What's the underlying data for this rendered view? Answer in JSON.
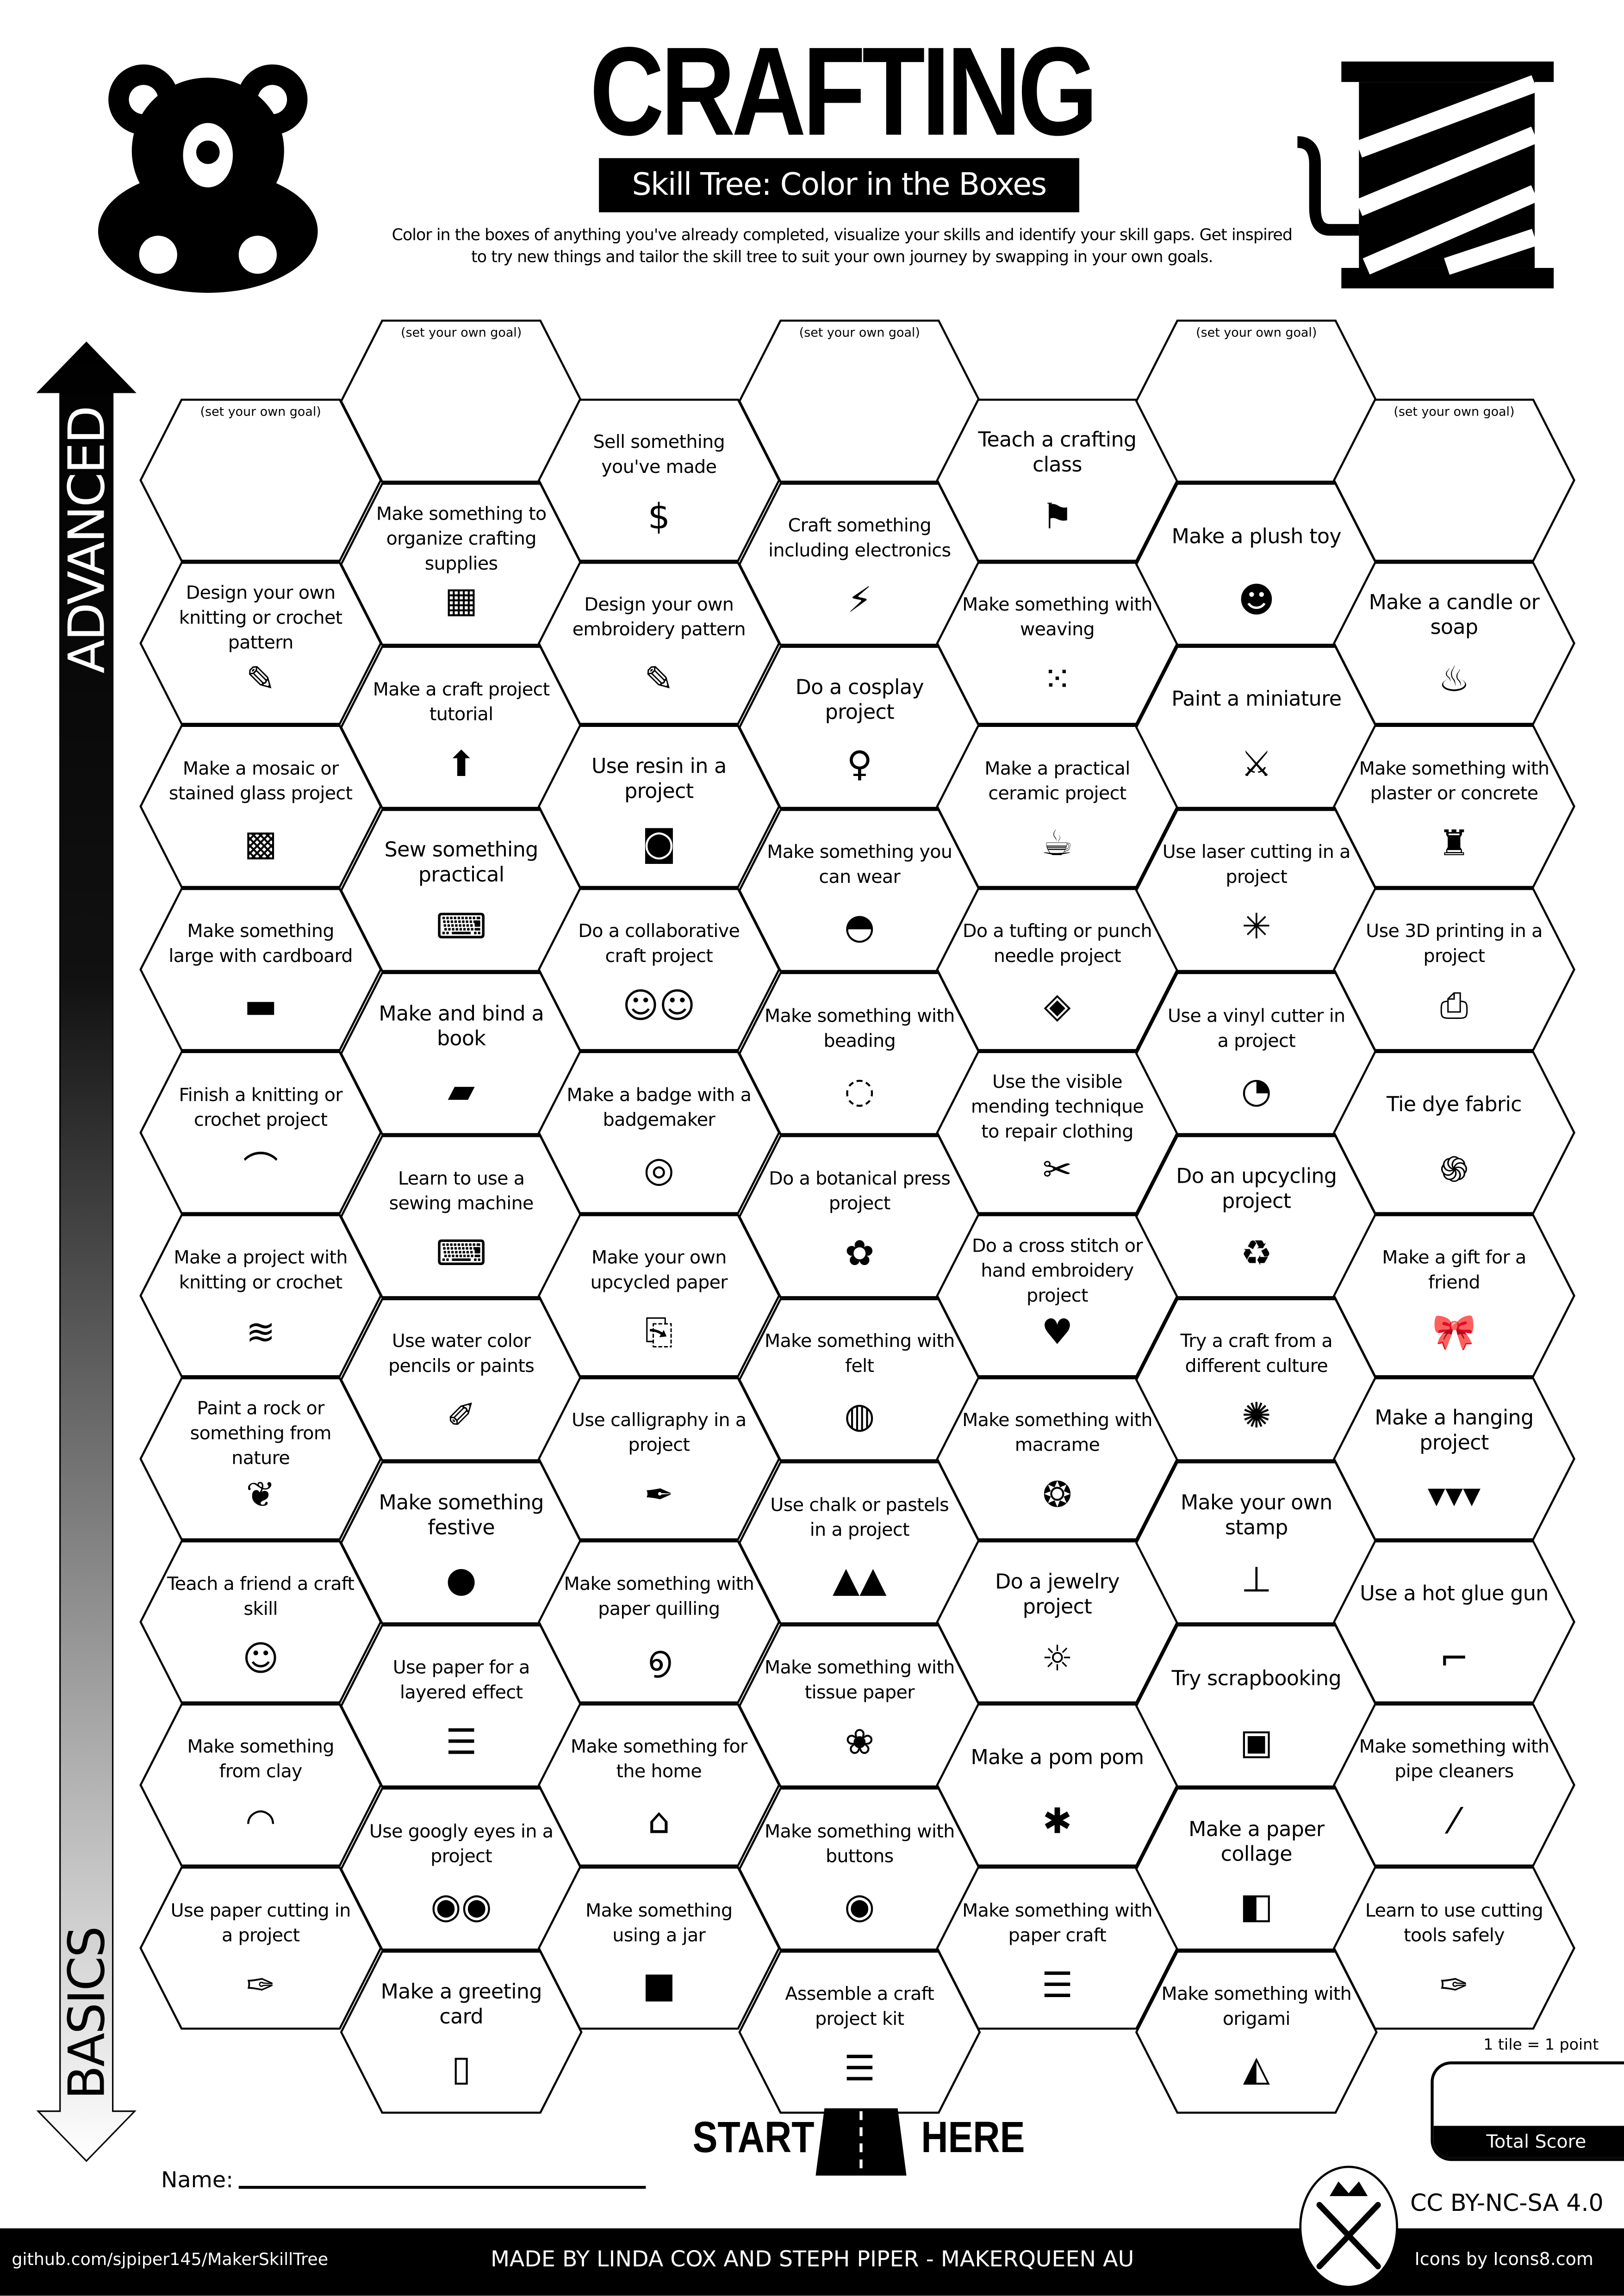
{
  "header": {
    "title": "CRAFTING",
    "subtitle": "Skill Tree: Color in the Boxes",
    "description_line1": "Color in the boxes of anything you've already completed, visualize your skills and identify your skill gaps.  Get inspired",
    "description_line2": "to try new things and tailor the skill tree to suit your own journey by swapping in your own goals.",
    "left_icon": "teddy-bear-icon",
    "right_icon": "thread-spool-icon"
  },
  "axis": {
    "top_label": "ADVANCED",
    "bottom_label": "BASICS"
  },
  "columns": [
    [
      {
        "goal": "(set your own goal)"
      },
      {
        "label": "Design your own knitting or crochet pattern",
        "icon": "pattern-icon",
        "glyph": "✎"
      },
      {
        "label": "Make a mosaic or stained glass project",
        "icon": "mosaic-icon",
        "glyph": "▩"
      },
      {
        "label": "Make something large with cardboard",
        "icon": "cardboard-icon",
        "glyph": "▬"
      },
      {
        "label": "Finish a knitting or crochet project",
        "icon": "knitting-icon",
        "glyph": "⌒"
      },
      {
        "label": "Make a project with knitting or crochet",
        "icon": "knitting-needles-icon",
        "glyph": "≋"
      },
      {
        "label": "Paint a rock or something from nature",
        "icon": "leaf-icon",
        "glyph": "❦"
      },
      {
        "label": "Teach a friend a craft skill",
        "icon": "teaching-icon",
        "glyph": "☺"
      },
      {
        "label": "Make something from clay",
        "icon": "rainbow-icon",
        "glyph": "◠"
      },
      {
        "label": "Use paper cutting in a project",
        "icon": "craft-knife-icon",
        "glyph": "✑"
      }
    ],
    [
      {
        "goal": "(set your own goal)"
      },
      {
        "label": "Make something to organize crafting supplies",
        "icon": "organize-icon",
        "glyph": "▦"
      },
      {
        "label": "Make a craft project tutorial",
        "icon": "upload-icon",
        "glyph": "⬆"
      },
      {
        "label": "Sew something practical",
        "icon": "sewing-machine-icon",
        "glyph": "⌨"
      },
      {
        "label": "Make and bind a book",
        "icon": "book-icon",
        "glyph": "▰"
      },
      {
        "label": "Learn to use a sewing machine",
        "icon": "sewing-machine-icon",
        "glyph": "⌨"
      },
      {
        "label": "Use water color pencils or paints",
        "icon": "paint-brush-icon",
        "glyph": "✐"
      },
      {
        "label": "Make something festive",
        "icon": "ornament-icon",
        "glyph": "●"
      },
      {
        "label": "Use paper for a layered effect",
        "icon": "paper-stack-icon",
        "glyph": "☰"
      },
      {
        "label": "Use googly eyes in a project",
        "icon": "googly-eyes-icon",
        "glyph": "◉◉"
      },
      {
        "label": "Make a greeting card",
        "icon": "greeting-card-icon",
        "glyph": "▯"
      }
    ],
    [
      {
        "label": "Sell something you've made",
        "icon": "money-bag-icon",
        "glyph": "$"
      },
      {
        "label": "Design your own embroidery pattern",
        "icon": "pattern-icon",
        "glyph": "✎"
      },
      {
        "label": "Use resin in a project",
        "icon": "resin-bucket-icon",
        "glyph": "◙"
      },
      {
        "label": "Do a collaborative craft project",
        "icon": "collaboration-icon",
        "glyph": "☺☺"
      },
      {
        "label": "Make a badge with a badgemaker",
        "icon": "badge-icon",
        "glyph": "◎"
      },
      {
        "label": "Make your own upcycled paper",
        "icon": "scroll-icon",
        "glyph": "⎘"
      },
      {
        "label": "Use calligraphy in a project",
        "icon": "fountain-pen-icon",
        "glyph": "✒"
      },
      {
        "label": "Make something with paper quilling",
        "icon": "spiral-icon",
        "glyph": "൭"
      },
      {
        "label": "Make something for the home",
        "icon": "home-icon",
        "glyph": "⌂"
      },
      {
        "label": "Make something using a jar",
        "icon": "jar-icon",
        "glyph": "■"
      }
    ],
    [
      {
        "goal": "(set your own goal)"
      },
      {
        "label": "Craft something including electronics",
        "icon": "led-electronics-icon",
        "glyph": "⚡"
      },
      {
        "label": "Do a cosplay project",
        "icon": "mannequin-icon",
        "glyph": "♀"
      },
      {
        "label": "Make something you can wear",
        "icon": "hat-icon",
        "glyph": "◓"
      },
      {
        "label": "Make something with beading",
        "icon": "beads-icon",
        "glyph": "◌"
      },
      {
        "label": "Do a botanical press project",
        "icon": "flower-icon",
        "glyph": "✿"
      },
      {
        "label": "Make something with felt",
        "icon": "felt-icon",
        "glyph": "◍"
      },
      {
        "label": "Use chalk or pastels in a project",
        "icon": "pastels-icon",
        "glyph": "▲▲"
      },
      {
        "label": "Make something with tissue paper",
        "icon": "lotus-icon",
        "glyph": "❀"
      },
      {
        "label": "Make something with buttons",
        "icon": "button-icon",
        "glyph": "◉"
      },
      {
        "label": "Assemble a craft project kit",
        "icon": "kit-stack-icon",
        "glyph": "☰"
      }
    ],
    [
      {
        "label": "Teach a crafting class",
        "icon": "teacher-board-icon",
        "glyph": "⚑"
      },
      {
        "label": "Make something with weaving",
        "icon": "weaving-icon",
        "glyph": "⁙"
      },
      {
        "label": "Make a practical ceramic project",
        "icon": "mug-icon",
        "glyph": "☕"
      },
      {
        "label": "Do a tufting or punch needle project",
        "icon": "rug-icon",
        "glyph": "◈"
      },
      {
        "label": "Use the visible mending technique to repair clothing",
        "icon": "needle-thread-icon",
        "glyph": "✂"
      },
      {
        "label": "Do a cross stitch or hand embroidery project",
        "icon": "cross-stitch-heart-icon",
        "glyph": "♥"
      },
      {
        "label": "Make something with macrame",
        "icon": "dreamcatcher-icon",
        "glyph": "❂"
      },
      {
        "label": "Do a jewelry project",
        "icon": "necklace-icon",
        "glyph": "☼"
      },
      {
        "label": "Make a pom pom",
        "icon": "pom-pom-icon",
        "glyph": "✱"
      },
      {
        "label": "Make something with paper craft",
        "icon": "paper-stack-icon",
        "glyph": "☰"
      }
    ],
    [
      {
        "goal": "(set your own goal)"
      },
      {
        "label": "Make a plush toy",
        "icon": "teddy-bear-icon",
        "glyph": "☻"
      },
      {
        "label": "Paint a miniature",
        "icon": "knight-miniature-icon",
        "glyph": "⚔"
      },
      {
        "label": "Use laser cutting in a project",
        "icon": "laser-icon",
        "glyph": "✳"
      },
      {
        "label": "Use a vinyl cutter in a project",
        "icon": "sticker-icon",
        "glyph": "◔"
      },
      {
        "label": "Do an upcycling project",
        "icon": "recycle-icon",
        "glyph": "♻"
      },
      {
        "label": "Try a craft from a different culture",
        "icon": "mandala-icon",
        "glyph": "✺"
      },
      {
        "label": "Make your own stamp",
        "icon": "stamp-icon",
        "glyph": "⊥"
      },
      {
        "label": "Try scrapbooking",
        "icon": "picture-icon",
        "glyph": "▣"
      },
      {
        "label": "Make a paper collage",
        "icon": "collage-icon",
        "glyph": "◧"
      },
      {
        "label": "Make something with origami",
        "icon": "origami-crane-icon",
        "glyph": "◭"
      }
    ],
    [
      {
        "goal": "(set your own goal)"
      },
      {
        "label": "Make a candle or soap",
        "icon": "candle-icon",
        "glyph": "♨"
      },
      {
        "label": "Make something with plaster or concrete",
        "icon": "statue-icon",
        "glyph": "♜"
      },
      {
        "label": "Use 3D printing in a project",
        "icon": "3d-printer-icon",
        "glyph": "⎙"
      },
      {
        "label": "Tie dye fabric",
        "icon": "swirl-icon",
        "glyph": "֍"
      },
      {
        "label": "Make a gift for a friend",
        "icon": "gift-bow-icon",
        "glyph": "🎀"
      },
      {
        "label": "Make a hanging project",
        "icon": "bunting-icon",
        "glyph": "▾▾▾"
      },
      {
        "label": "Use a hot glue gun",
        "icon": "glue-gun-icon",
        "glyph": "⌐"
      },
      {
        "label": "Make something with pipe cleaners",
        "icon": "pipe-cleaner-icon",
        "glyph": "⁄"
      },
      {
        "label": "Learn to use cutting tools safely",
        "icon": "craft-knife-icon",
        "glyph": "✑"
      }
    ]
  ],
  "footer_area": {
    "start": "START",
    "here": "HERE",
    "road_icon": "road-icon",
    "name_label": "Name:",
    "score_note": "1 tile = 1 point",
    "score_label": "Total Score",
    "license": "CC BY-NC-SA 4.0",
    "logo_icon": "makerqueen-tools-logo-icon",
    "icons_credit": "Icons by Icons8.com",
    "github": "github.com/sjpiper145/MakerSkillTree",
    "credits": "MADE BY LINDA COX  AND STEPH PIPER  -  MAKERQUEEN AU"
  }
}
